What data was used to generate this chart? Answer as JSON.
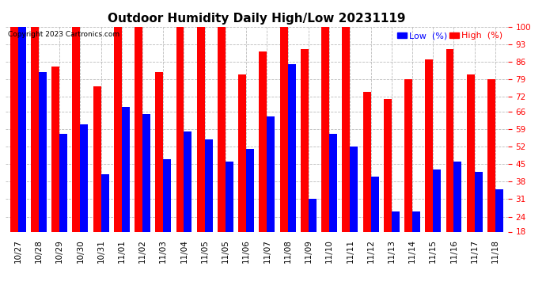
{
  "title": "Outdoor Humidity Daily High/Low 20231119",
  "copyright": "Copyright 2023 Cartronics.com",
  "legend_low": "Low  (%)",
  "legend_high": "High  (%)",
  "dates": [
    "10/27",
    "10/28",
    "10/29",
    "10/30",
    "10/31",
    "11/01",
    "11/02",
    "11/03",
    "11/04",
    "11/05",
    "11/05",
    "11/06",
    "11/07",
    "11/08",
    "11/09",
    "11/10",
    "11/11",
    "11/12",
    "11/13",
    "11/14",
    "11/15",
    "11/16",
    "11/17",
    "11/18"
  ],
  "high": [
    100,
    100,
    84,
    100,
    76,
    100,
    100,
    82,
    100,
    100,
    100,
    81,
    90,
    100,
    91,
    100,
    100,
    74,
    71,
    79,
    87,
    91,
    81,
    79
  ],
  "low": [
    100,
    82,
    57,
    61,
    41,
    68,
    65,
    47,
    58,
    55,
    46,
    51,
    64,
    85,
    31,
    57,
    52,
    40,
    26,
    26,
    43,
    46,
    42,
    35
  ],
  "ylim_min": 18,
  "ylim_max": 100,
  "yticks": [
    18,
    24,
    31,
    38,
    45,
    52,
    59,
    66,
    72,
    79,
    86,
    93,
    100
  ],
  "bar_width": 0.38,
  "low_color": "#0000ff",
  "high_color": "#ff0000",
  "bg_color": "#ffffff",
  "grid_color": "#bbbbbb",
  "title_fontsize": 11,
  "tick_fontsize": 7.5,
  "legend_fontsize": 8
}
